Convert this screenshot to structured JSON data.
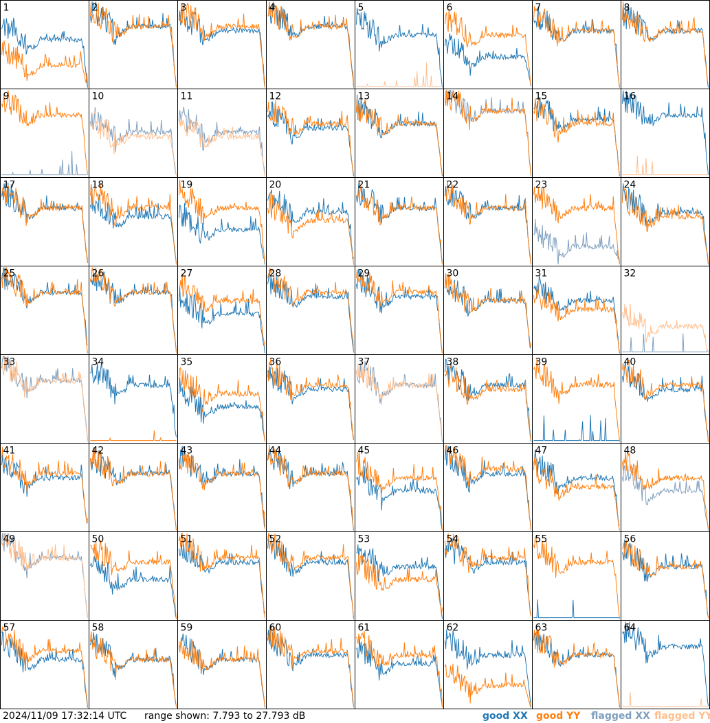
{
  "footer": {
    "timestamp": "2024/11/09 17:32:14 UTC",
    "range_text": "range shown: 7.793 to 27.793 dB"
  },
  "legend": [
    {
      "label": "good XX",
      "color": "#1f77b4"
    },
    {
      "label": "good YY",
      "color": "#ff7f0e"
    },
    {
      "label": "flagged XX",
      "color": "#7f9fbf"
    },
    {
      "label": "flagged YY",
      "color": "#ffbf8f"
    }
  ],
  "chart_data": {
    "type": "line",
    "title": "",
    "ylim": [
      7.793,
      27.793
    ],
    "y_unit": "dB",
    "grid": false,
    "layout": "8x8 small multiples",
    "legend_position": "bottom-right",
    "series_styles": {
      "good_xx": "#1f77b4",
      "good_yy": "#ff7f0e",
      "flagged_xx": "#7f9fbf",
      "flagged_yy": "#ffbf8f"
    },
    "panels": [
      {
        "id": "1",
        "xx": "good",
        "yy": "good",
        "xx_plateau": 19,
        "yy_plateau": 13
      },
      {
        "id": "2",
        "xx": "good",
        "yy": "good",
        "xx_plateau": 22,
        "yy_plateau": 22
      },
      {
        "id": "3",
        "xx": "good",
        "yy": "good",
        "xx_plateau": 21,
        "yy_plateau": 22
      },
      {
        "id": "4",
        "xx": "good",
        "yy": "good",
        "xx_plateau": 22,
        "yy_plateau": 22
      },
      {
        "id": "5",
        "xx": "good",
        "yy": "flagged",
        "xx_plateau": 20,
        "yy_plateau": 8
      },
      {
        "id": "6",
        "xx": "good",
        "yy": "good",
        "xx_plateau": 15,
        "yy_plateau": 20
      },
      {
        "id": "7",
        "xx": "good",
        "yy": "good",
        "xx_plateau": 21,
        "yy_plateau": 21
      },
      {
        "id": "8",
        "xx": "good",
        "yy": "good",
        "xx_plateau": 21,
        "yy_plateau": 21
      },
      {
        "id": "9",
        "xx": "flagged",
        "yy": "good",
        "xx_plateau": 8,
        "yy_plateau": 22
      },
      {
        "id": "10",
        "xx": "flagged",
        "yy": "flagged",
        "xx_plateau": 18,
        "yy_plateau": 17
      },
      {
        "id": "11",
        "xx": "flagged",
        "yy": "flagged",
        "xx_plateau": 18,
        "yy_plateau": 17
      },
      {
        "id": "12",
        "xx": "good",
        "yy": "good",
        "xx_plateau": 19,
        "yy_plateau": 20
      },
      {
        "id": "13",
        "xx": "good",
        "yy": "good",
        "xx_plateau": 20,
        "yy_plateau": 20
      },
      {
        "id": "14",
        "xx": "flagged",
        "yy": "good",
        "xx_plateau": 23,
        "yy_plateau": 23
      },
      {
        "id": "15",
        "xx": "good",
        "yy": "good",
        "xx_plateau": 21,
        "yy_plateau": 20
      },
      {
        "id": "16",
        "xx": "good",
        "yy": "flagged",
        "xx_plateau": 22,
        "yy_plateau": 8
      },
      {
        "id": "17",
        "xx": "good",
        "yy": "good",
        "xx_plateau": 21,
        "yy_plateau": 21
      },
      {
        "id": "18",
        "xx": "good",
        "yy": "good",
        "xx_plateau": 19,
        "yy_plateau": 21
      },
      {
        "id": "19",
        "xx": "good",
        "yy": "good",
        "xx_plateau": 16,
        "yy_plateau": 21
      },
      {
        "id": "20",
        "xx": "good",
        "yy": "good",
        "xx_plateau": 20,
        "yy_plateau": 18
      },
      {
        "id": "21",
        "xx": "good",
        "yy": "good",
        "xx_plateau": 21,
        "yy_plateau": 21
      },
      {
        "id": "22",
        "xx": "good",
        "yy": "good",
        "xx_plateau": 21,
        "yy_plateau": 21
      },
      {
        "id": "23",
        "xx": "flagged",
        "yy": "good",
        "xx_plateau": 12,
        "yy_plateau": 21
      },
      {
        "id": "24",
        "xx": "good",
        "yy": "good",
        "xx_plateau": 20,
        "yy_plateau": 19
      },
      {
        "id": "25",
        "xx": "good",
        "yy": "good",
        "xx_plateau": 22,
        "yy_plateau": 22
      },
      {
        "id": "26",
        "xx": "good",
        "yy": "good",
        "xx_plateau": 22,
        "yy_plateau": 22
      },
      {
        "id": "27",
        "xx": "good",
        "yy": "good",
        "xx_plateau": 17,
        "yy_plateau": 20
      },
      {
        "id": "28",
        "xx": "good",
        "yy": "good",
        "xx_plateau": 21,
        "yy_plateau": 22
      },
      {
        "id": "29",
        "xx": "good",
        "yy": "good",
        "xx_plateau": 21,
        "yy_plateau": 22
      },
      {
        "id": "30",
        "xx": "good",
        "yy": "good",
        "xx_plateau": 20,
        "yy_plateau": 20
      },
      {
        "id": "31",
        "xx": "good",
        "yy": "good",
        "xx_plateau": 20,
        "yy_plateau": 18
      },
      {
        "id": "32",
        "xx": "flagged",
        "yy": "flagged",
        "xx_plateau": 8,
        "yy_plateau": 14
      },
      {
        "id": "33",
        "xx": "flagged",
        "yy": "flagged",
        "xx_plateau": 22,
        "yy_plateau": 22
      },
      {
        "id": "34",
        "xx": "good",
        "yy": "good",
        "xx_plateau": 21,
        "yy_plateau": 8
      },
      {
        "id": "35",
        "xx": "good",
        "yy": "good",
        "xx_plateau": 16,
        "yy_plateau": 19
      },
      {
        "id": "36",
        "xx": "good",
        "yy": "good",
        "xx_plateau": 20,
        "yy_plateau": 21
      },
      {
        "id": "37",
        "xx": "flagged",
        "yy": "flagged",
        "xx_plateau": 21,
        "yy_plateau": 21
      },
      {
        "id": "38",
        "xx": "good",
        "yy": "good",
        "xx_plateau": 21,
        "yy_plateau": 20
      },
      {
        "id": "39",
        "xx": "good",
        "yy": "good",
        "xx_plateau": 8,
        "yy_plateau": 21
      },
      {
        "id": "40",
        "xx": "good",
        "yy": "good",
        "xx_plateau": 20,
        "yy_plateau": 21
      },
      {
        "id": "41",
        "xx": "good",
        "yy": "good",
        "xx_plateau": 20,
        "yy_plateau": 21
      },
      {
        "id": "42",
        "xx": "good",
        "yy": "good",
        "xx_plateau": 21,
        "yy_plateau": 21
      },
      {
        "id": "43",
        "xx": "good",
        "yy": "good",
        "xx_plateau": 21,
        "yy_plateau": 21
      },
      {
        "id": "44",
        "xx": "good",
        "yy": "good",
        "xx_plateau": 21,
        "yy_plateau": 21
      },
      {
        "id": "45",
        "xx": "good",
        "yy": "good",
        "xx_plateau": 17,
        "yy_plateau": 20
      },
      {
        "id": "46",
        "xx": "good",
        "yy": "good",
        "xx_plateau": 21,
        "yy_plateau": 22
      },
      {
        "id": "47",
        "xx": "good",
        "yy": "good",
        "xx_plateau": 20,
        "yy_plateau": 18
      },
      {
        "id": "48",
        "xx": "flagged",
        "yy": "good",
        "xx_plateau": 17,
        "yy_plateau": 20
      },
      {
        "id": "49",
        "xx": "flagged",
        "yy": "flagged",
        "xx_plateau": 22,
        "yy_plateau": 22
      },
      {
        "id": "50",
        "xx": "good",
        "yy": "good",
        "xx_plateau": 17,
        "yy_plateau": 21
      },
      {
        "id": "51",
        "xx": "good",
        "yy": "good",
        "xx_plateau": 21,
        "yy_plateau": 22
      },
      {
        "id": "52",
        "xx": "good",
        "yy": "good",
        "xx_plateau": 21,
        "yy_plateau": 22
      },
      {
        "id": "53",
        "xx": "good",
        "yy": "good",
        "xx_plateau": 20,
        "yy_plateau": 17
      },
      {
        "id": "54",
        "xx": "good",
        "yy": "good",
        "xx_plateau": 21,
        "yy_plateau": 22
      },
      {
        "id": "55",
        "xx": "good",
        "yy": "good",
        "xx_plateau": 8,
        "yy_plateau": 21
      },
      {
        "id": "56",
        "xx": "good",
        "yy": "good",
        "xx_plateau": 20,
        "yy_plateau": 20
      },
      {
        "id": "57",
        "xx": "good",
        "yy": "good",
        "xx_plateau": 19,
        "yy_plateau": 21
      },
      {
        "id": "58",
        "xx": "good",
        "yy": "good",
        "xx_plateau": 19,
        "yy_plateau": 19
      },
      {
        "id": "59",
        "xx": "good",
        "yy": "good",
        "xx_plateau": 19,
        "yy_plateau": 19
      },
      {
        "id": "60",
        "xx": "good",
        "yy": "good",
        "xx_plateau": 20,
        "yy_plateau": 21
      },
      {
        "id": "61",
        "xx": "good",
        "yy": "good",
        "xx_plateau": 18,
        "yy_plateau": 20
      },
      {
        "id": "62",
        "xx": "good",
        "yy": "good",
        "xx_plateau": 20,
        "yy_plateau": 13
      },
      {
        "id": "63",
        "xx": "good",
        "yy": "good",
        "xx_plateau": 20,
        "yy_plateau": 20
      },
      {
        "id": "64",
        "xx": "good",
        "yy": "flagged",
        "xx_plateau": 22,
        "yy_plateau": 8
      }
    ]
  }
}
